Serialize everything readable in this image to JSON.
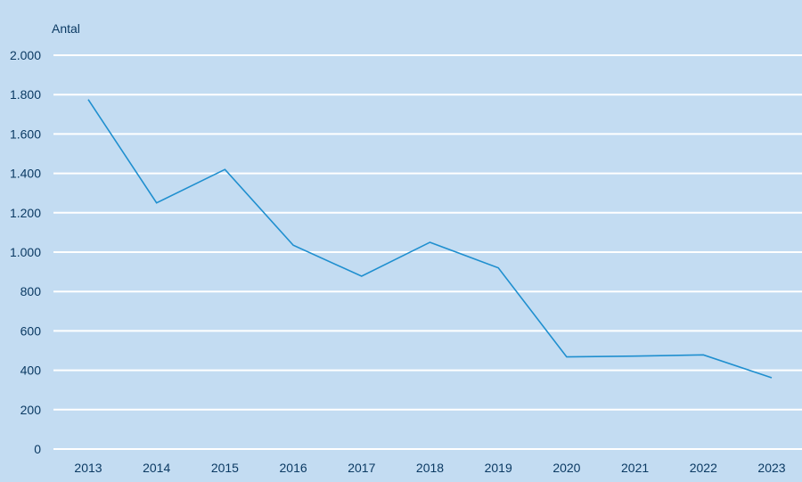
{
  "chart_data": {
    "type": "line",
    "title": "",
    "xlabel": "",
    "ylabel": "Antal",
    "categories": [
      "2013",
      "2014",
      "2015",
      "2016",
      "2017",
      "2018",
      "2019",
      "2020",
      "2021",
      "2022",
      "2023"
    ],
    "series": [
      {
        "values": [
          1775,
          1250,
          1420,
          1035,
          878,
          1050,
          920,
          468,
          472,
          478,
          362
        ]
      }
    ],
    "ylim": [
      0,
      2000
    ],
    "yticks": [
      {
        "value": 0,
        "label": "0"
      },
      {
        "value": 200,
        "label": "200"
      },
      {
        "value": 400,
        "label": "400"
      },
      {
        "value": 600,
        "label": "600"
      },
      {
        "value": 800,
        "label": "800"
      },
      {
        "value": 1000,
        "label": "1.000"
      },
      {
        "value": 1200,
        "label": "1.200"
      },
      {
        "value": 1400,
        "label": "1.400"
      },
      {
        "value": 1600,
        "label": "1.600"
      },
      {
        "value": 1800,
        "label": "1.800"
      },
      {
        "value": 2000,
        "label": "2.000"
      }
    ],
    "grid": true,
    "legend": "none",
    "colors": {
      "background": "#c3dcf2",
      "gridline": "#ffffff",
      "line": "#1f8fcf",
      "text": "#0b3a63"
    }
  }
}
